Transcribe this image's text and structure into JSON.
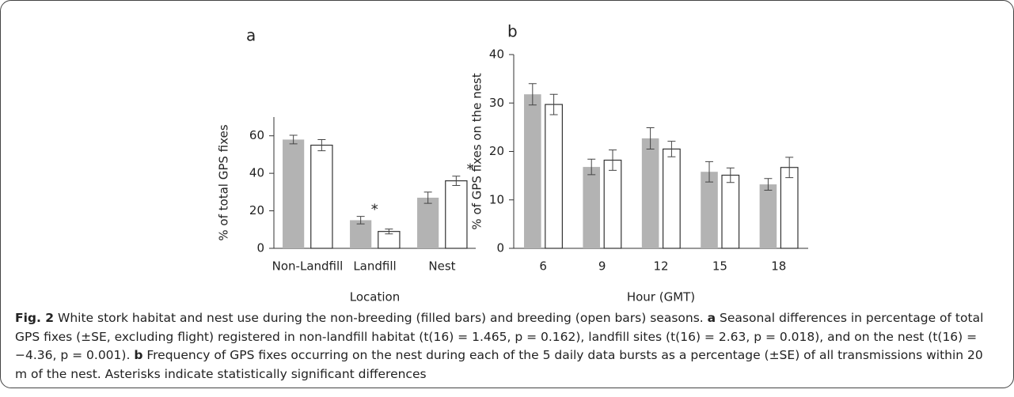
{
  "chart_data": [
    {
      "type": "bar",
      "title": "a",
      "x_label": "Location",
      "y_label": "% of total GPS fixes",
      "categories": [
        "Non-Landfill",
        "Landfill",
        "Nest"
      ],
      "series": [
        {
          "color": "#b3b3b3",
          "values": [
            58,
            15,
            27
          ],
          "errors": [
            2.3,
            2,
            3
          ]
        },
        {
          "color": "#ffffff",
          "values": [
            55,
            9,
            36
          ],
          "errors": [
            3,
            1.3,
            2.5
          ]
        }
      ],
      "annotations": [
        {
          "text": "*",
          "category": 1,
          "series": 0
        },
        {
          "text": "*",
          "category": 2,
          "series": 1
        }
      ],
      "ylim": [
        0,
        70
      ],
      "yticks": [
        0,
        20,
        40,
        60
      ]
    },
    {
      "type": "bar",
      "title": "b",
      "x_label": "Hour (GMT)",
      "y_label": "% of GPS fixes on the nest",
      "categories": [
        "6",
        "9",
        "12",
        "15",
        "18"
      ],
      "series": [
        {
          "color": "#b3b3b3",
          "values": [
            31.8,
            16.8,
            22.7,
            15.8,
            13.2
          ],
          "errors": [
            2.2,
            1.6,
            2.2,
            2.1,
            1.2
          ]
        },
        {
          "color": "#ffffff",
          "values": [
            29.7,
            18.2,
            20.5,
            15.1,
            16.7
          ],
          "errors": [
            2.1,
            2.1,
            1.6,
            1.5,
            2.1
          ]
        }
      ],
      "ylim": [
        0,
        40
      ],
      "yticks": [
        0,
        10,
        20,
        30,
        40
      ]
    }
  ],
  "caption": {
    "label": "Fig. 2",
    "text": " White stork habitat and nest use during the non-breeding (filled bars) and breeding (open bars) seasons. ",
    "part_a": "a",
    "text_a": " Seasonal differences in percentage of total GPS fixes (±SE, excluding flight) registered in non-landfill habitat (t(16) = 1.465, p = 0.162), landfill sites (t(16) = 2.63, p = 0.018), and on the nest (t(16) = −4.36, p = 0.001). ",
    "part_b": "b",
    "text_b": " Frequency of GPS fixes occurring on the nest during each of the 5 daily data bursts as a percentage (±SE) of all transmissions within 20 m of the nest. Asterisks indicate statistically significant differences"
  }
}
